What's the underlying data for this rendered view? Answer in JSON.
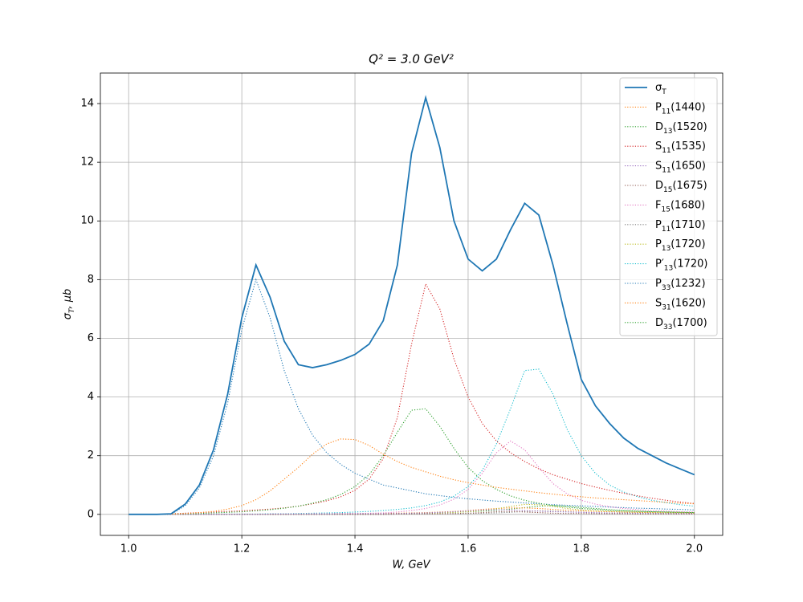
{
  "chart_data": {
    "type": "line",
    "title": "Q² = 3.0 GeV²",
    "x_label": "W, GeV",
    "y_label": "σT, μb",
    "x": [
      1.0,
      1.025,
      1.05,
      1.075,
      1.1,
      1.125,
      1.15,
      1.175,
      1.2,
      1.225,
      1.25,
      1.275,
      1.3,
      1.325,
      1.35,
      1.375,
      1.4,
      1.425,
      1.45,
      1.475,
      1.5,
      1.525,
      1.55,
      1.575,
      1.6,
      1.625,
      1.65,
      1.675,
      1.7,
      1.725,
      1.75,
      1.775,
      1.8,
      1.825,
      1.85,
      1.875,
      1.9,
      1.925,
      1.95,
      1.975,
      2.0
    ],
    "xlim": [
      0.95,
      2.05
    ],
    "ylim": [
      -0.716,
      15.04
    ],
    "xticks": [
      {
        "value": 1.0,
        "label": "1.0"
      },
      1.2,
      1.4,
      1.6,
      1.8,
      {
        "value": 2.0,
        "label": "2.0"
      }
    ],
    "yticks": [
      0,
      2,
      4,
      6,
      8,
      10,
      12,
      14
    ],
    "grid": true,
    "legend": "upper right",
    "series": [
      {
        "name": "σT",
        "color": "#1f77b4",
        "linestyle": "solid",
        "values": [
          0,
          0,
          0,
          0.02,
          0.35,
          1.0,
          2.2,
          4.1,
          6.7,
          8.5,
          7.4,
          5.9,
          5.1,
          5.0,
          5.1,
          5.25,
          5.45,
          5.8,
          6.6,
          8.5,
          12.3,
          14.2,
          12.5,
          10.0,
          8.7,
          8.3,
          8.7,
          9.7,
          10.6,
          10.2,
          8.5,
          6.5,
          4.6,
          3.7,
          3.1,
          2.6,
          2.25,
          2.0,
          1.75,
          1.55,
          1.35
        ]
      },
      {
        "name": "P11(1440)",
        "color": "#ff7f0e",
        "linestyle": "dotted",
        "values": [
          0,
          0,
          0,
          0.01,
          0.03,
          0.06,
          0.1,
          0.18,
          0.3,
          0.5,
          0.8,
          1.2,
          1.6,
          2.05,
          2.4,
          2.57,
          2.55,
          2.35,
          2.05,
          1.8,
          1.6,
          1.45,
          1.3,
          1.18,
          1.08,
          1.0,
          0.92,
          0.86,
          0.8,
          0.74,
          0.69,
          0.64,
          0.6,
          0.56,
          0.53,
          0.5,
          0.47,
          0.44,
          0.41,
          0.38,
          0.36
        ]
      },
      {
        "name": "D13(1520)",
        "color": "#2ca02c",
        "linestyle": "dotted",
        "values": [
          0,
          0,
          0,
          0.01,
          0.02,
          0.03,
          0.05,
          0.07,
          0.09,
          0.12,
          0.16,
          0.21,
          0.28,
          0.38,
          0.5,
          0.68,
          0.95,
          1.35,
          2.0,
          2.8,
          3.55,
          3.6,
          3.0,
          2.25,
          1.6,
          1.15,
          0.85,
          0.63,
          0.48,
          0.38,
          0.3,
          0.25,
          0.2,
          0.17,
          0.14,
          0.12,
          0.1,
          0.09,
          0.08,
          0.07,
          0.06
        ]
      },
      {
        "name": "S11(1535)",
        "color": "#d62728",
        "linestyle": "dotted",
        "values": [
          0,
          0,
          0,
          0.02,
          0.04,
          0.06,
          0.08,
          0.1,
          0.12,
          0.15,
          0.18,
          0.22,
          0.28,
          0.36,
          0.46,
          0.6,
          0.82,
          1.2,
          1.9,
          3.3,
          5.8,
          7.85,
          7.0,
          5.3,
          4.0,
          3.1,
          2.5,
          2.1,
          1.8,
          1.55,
          1.35,
          1.2,
          1.05,
          0.93,
          0.82,
          0.72,
          0.63,
          0.55,
          0.48,
          0.42,
          0.37
        ]
      },
      {
        "name": "S11(1650)",
        "color": "#9467bd",
        "linestyle": "dotted",
        "values": [
          0,
          0,
          0,
          0,
          0,
          0,
          0,
          0,
          0,
          0,
          0.01,
          0.01,
          0.01,
          0.01,
          0.01,
          0.02,
          0.02,
          0.02,
          0.02,
          0.03,
          0.04,
          0.05,
          0.07,
          0.09,
          0.12,
          0.15,
          0.16,
          0.15,
          0.13,
          0.11,
          0.09,
          0.08,
          0.07,
          0.06,
          0.05,
          0.05,
          0.04,
          0.04,
          0.03,
          0.03,
          0.03
        ]
      },
      {
        "name": "D15(1675)",
        "color": "#8c564b",
        "linestyle": "dotted",
        "values": [
          0,
          0,
          0,
          0,
          0,
          0,
          0,
          0,
          0,
          0,
          0,
          0,
          0,
          0,
          0,
          0,
          0,
          0,
          0,
          0.01,
          0.02,
          0.02,
          0.02,
          0.03,
          0.04,
          0.06,
          0.09,
          0.1,
          0.08,
          0.06,
          0.04,
          0.03,
          0.03,
          0.02,
          0.02,
          0.02,
          0.01,
          0.01,
          0.01,
          0.01,
          0.01
        ]
      },
      {
        "name": "F15(1680)",
        "color": "#e377c2",
        "linestyle": "dotted",
        "values": [
          0,
          0,
          0,
          0,
          0,
          0,
          0,
          0,
          0,
          0,
          0.01,
          0.01,
          0.01,
          0.02,
          0.02,
          0.03,
          0.03,
          0.04,
          0.05,
          0.08,
          0.13,
          0.2,
          0.32,
          0.52,
          0.85,
          1.4,
          2.1,
          2.5,
          2.2,
          1.6,
          1.05,
          0.7,
          0.48,
          0.35,
          0.26,
          0.2,
          0.16,
          0.13,
          0.11,
          0.09,
          0.08
        ]
      },
      {
        "name": "P11(1710)",
        "color": "#7f7f7f",
        "linestyle": "dotted",
        "values": [
          0,
          0,
          0,
          0,
          0,
          0,
          0,
          0,
          0,
          0,
          0,
          0,
          0,
          0,
          0,
          0,
          0,
          0,
          0,
          0.01,
          0.01,
          0.01,
          0.02,
          0.02,
          0.03,
          0.04,
          0.05,
          0.07,
          0.1,
          0.12,
          0.11,
          0.09,
          0.07,
          0.05,
          0.04,
          0.04,
          0.03,
          0.03,
          0.02,
          0.02,
          0.02
        ]
      },
      {
        "name": "P13(1720)",
        "color": "#bcbd22",
        "linestyle": "dotted",
        "values": [
          0,
          0,
          0,
          0,
          0,
          0,
          0,
          0,
          0,
          0,
          0,
          0,
          0,
          0,
          0,
          0,
          0,
          0,
          0,
          0.02,
          0.03,
          0.04,
          0.05,
          0.07,
          0.09,
          0.13,
          0.19,
          0.27,
          0.34,
          0.33,
          0.27,
          0.2,
          0.15,
          0.12,
          0.1,
          0.08,
          0.07,
          0.06,
          0.05,
          0.05,
          0.04
        ]
      },
      {
        "name": "P′13(1720)",
        "color": "#17becf",
        "linestyle": "dotted",
        "values": [
          0,
          0,
          0,
          0,
          0,
          0,
          0.01,
          0.01,
          0.01,
          0.01,
          0.02,
          0.02,
          0.03,
          0.04,
          0.05,
          0.06,
          0.08,
          0.1,
          0.13,
          0.17,
          0.22,
          0.3,
          0.42,
          0.62,
          0.95,
          1.5,
          2.4,
          3.6,
          4.9,
          4.95,
          4.1,
          2.9,
          2.0,
          1.4,
          1.0,
          0.76,
          0.6,
          0.48,
          0.4,
          0.33,
          0.28
        ]
      },
      {
        "name": "P33(1232)",
        "color": "#1f77b4",
        "linestyle": "dotted",
        "values": [
          0,
          0,
          0,
          0,
          0.3,
          0.9,
          2.0,
          3.8,
          6.3,
          8.0,
          6.7,
          4.9,
          3.6,
          2.7,
          2.1,
          1.7,
          1.4,
          1.2,
          1.0,
          0.9,
          0.8,
          0.7,
          0.64,
          0.58,
          0.53,
          0.49,
          0.45,
          0.42,
          0.39,
          0.36,
          0.33,
          0.31,
          0.29,
          0.27,
          0.25,
          0.23,
          0.21,
          0.2,
          0.18,
          0.17,
          0.15
        ]
      },
      {
        "name": "S31(1620)",
        "color": "#ff7f0e",
        "linestyle": "dotted",
        "values": [
          0,
          0,
          0,
          0,
          0,
          0,
          0,
          0,
          0,
          0,
          0,
          0,
          0.01,
          0.01,
          0.01,
          0.02,
          0.02,
          0.03,
          0.03,
          0.04,
          0.05,
          0.06,
          0.08,
          0.1,
          0.13,
          0.17,
          0.2,
          0.22,
          0.22,
          0.2,
          0.17,
          0.14,
          0.12,
          0.1,
          0.09,
          0.08,
          0.07,
          0.06,
          0.05,
          0.05,
          0.04
        ]
      },
      {
        "name": "D33(1700)",
        "color": "#2ca02c",
        "linestyle": "dotted",
        "values": [
          0,
          0,
          0,
          0,
          0,
          0,
          0,
          0,
          0,
          0,
          0,
          0,
          0.01,
          0.01,
          0.01,
          0.01,
          0.02,
          0.02,
          0.03,
          0.03,
          0.04,
          0.05,
          0.06,
          0.07,
          0.09,
          0.11,
          0.14,
          0.18,
          0.23,
          0.28,
          0.3,
          0.28,
          0.24,
          0.2,
          0.16,
          0.13,
          0.11,
          0.09,
          0.08,
          0.07,
          0.06
        ]
      }
    ]
  }
}
